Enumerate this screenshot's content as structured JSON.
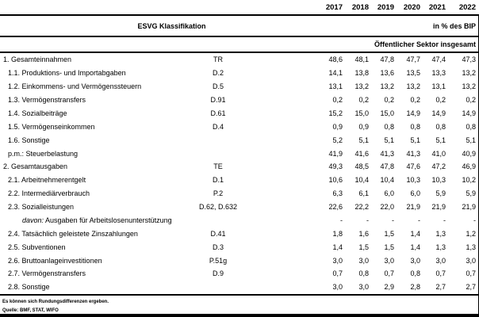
{
  "header": {
    "years": [
      "2017",
      "2018",
      "2019",
      "2020",
      "2021",
      "2022"
    ],
    "classification_label": "ESVG Klassifikation",
    "unit_label": "in % des BIP",
    "sector_label": "Öffentlicher Sektor insgesamt"
  },
  "rows": [
    {
      "label": "1. Gesamteinnahmen",
      "code": "TR",
      "indent": 0,
      "values": [
        "48,6",
        "48,1",
        "47,8",
        "47,7",
        "47,4",
        "47,3"
      ]
    },
    {
      "label": "1.1. Produktions- und Importabgaben",
      "code": "D.2",
      "indent": 1,
      "values": [
        "14,1",
        "13,8",
        "13,6",
        "13,5",
        "13,3",
        "13,2"
      ]
    },
    {
      "label": "1.2. Einkommens- und Vermögenssteuern",
      "code": "D.5",
      "indent": 1,
      "values": [
        "13,1",
        "13,2",
        "13,2",
        "13,2",
        "13,1",
        "13,2"
      ]
    },
    {
      "label": "1.3. Vermögenstransfers",
      "code": "D.91",
      "indent": 1,
      "values": [
        "0,2",
        "0,2",
        "0,2",
        "0,2",
        "0,2",
        "0,2"
      ]
    },
    {
      "label": "1.4. Sozialbeiträge",
      "code": "D.61",
      "indent": 1,
      "values": [
        "15,2",
        "15,0",
        "15,0",
        "14,9",
        "14,9",
        "14,9"
      ]
    },
    {
      "label": "1.5. Vermögenseinkommen",
      "code": "D.4",
      "indent": 1,
      "values": [
        "0,9",
        "0,9",
        "0,8",
        "0,8",
        "0,8",
        "0,8"
      ]
    },
    {
      "label": "1.6. Sonstige",
      "code": "",
      "indent": 1,
      "values": [
        "5,2",
        "5,1",
        "5,1",
        "5,1",
        "5,1",
        "5,1"
      ]
    },
    {
      "label": "p.m.: Steuerbelastung",
      "code": "",
      "indent": 1,
      "values": [
        "41,9",
        "41,6",
        "41,3",
        "41,3",
        "41,0",
        "40,9"
      ]
    },
    {
      "label": "2. Gesamtausgaben",
      "code": "TE",
      "indent": 0,
      "values": [
        "49,3",
        "48,5",
        "47,8",
        "47,6",
        "47,2",
        "46,9"
      ]
    },
    {
      "label": "2.1. Arbeitnehmerentgelt",
      "code": "D.1",
      "indent": 1,
      "values": [
        "10,6",
        "10,4",
        "10,4",
        "10,3",
        "10,3",
        "10,2"
      ]
    },
    {
      "label": "2.2. Intermediärverbrauch",
      "code": "P.2",
      "indent": 1,
      "values": [
        "6,3",
        "6,1",
        "6,0",
        "6,0",
        "5,9",
        "5,9"
      ]
    },
    {
      "label": "2.3. Sozialleistungen",
      "code": "D.62, D.632",
      "indent": 1,
      "values": [
        "22,6",
        "22,2",
        "22,0",
        "21,9",
        "21,9",
        "21,9"
      ]
    },
    {
      "label_prefix": "davon:",
      "label": " Ausgaben für Arbeitslosenunterstützung",
      "code": "",
      "indent": 2,
      "values": [
        "-",
        "-",
        "-",
        "-",
        "-",
        "-"
      ]
    },
    {
      "label": "2.4. Tatsächlich geleistete Zinszahlungen",
      "code": "D.41",
      "indent": 1,
      "values": [
        "1,8",
        "1,6",
        "1,5",
        "1,4",
        "1,3",
        "1,2"
      ]
    },
    {
      "label": "2.5. Subventionen",
      "code": "D.3",
      "indent": 1,
      "values": [
        "1,4",
        "1,5",
        "1,5",
        "1,4",
        "1,3",
        "1,3"
      ]
    },
    {
      "label": "2.6. Bruttoanlageinvestitionen",
      "code": "P.51g",
      "indent": 1,
      "values": [
        "3,0",
        "3,0",
        "3,0",
        "3,0",
        "3,0",
        "3,0"
      ]
    },
    {
      "label": "2.7. Vermögenstransfers",
      "code": "D.9",
      "indent": 1,
      "values": [
        "0,7",
        "0,8",
        "0,7",
        "0,8",
        "0,7",
        "0,7"
      ]
    },
    {
      "label": "2.8. Sonstige",
      "code": "",
      "indent": 1,
      "values": [
        "3,0",
        "3,0",
        "2,9",
        "2,8",
        "2,7",
        "2,7"
      ]
    }
  ],
  "footnotes": [
    "Es können sich Rundungsdifferenzen ergeben.",
    "Quelle: BMF, STAT, WIFO"
  ]
}
